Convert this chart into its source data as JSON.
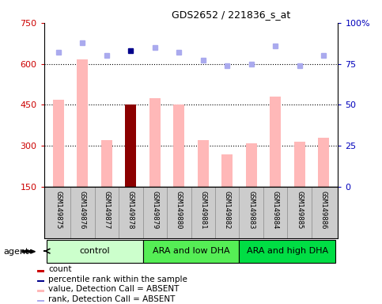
{
  "title": "GDS2652 / 221836_s_at",
  "samples": [
    "GSM149875",
    "GSM149876",
    "GSM149877",
    "GSM149878",
    "GSM149879",
    "GSM149880",
    "GSM149881",
    "GSM149882",
    "GSM149883",
    "GSM149884",
    "GSM149885",
    "GSM149886"
  ],
  "bar_values": [
    470,
    615,
    320,
    450,
    475,
    450,
    320,
    270,
    310,
    480,
    315,
    330
  ],
  "bar_colors": [
    "#ffb8b8",
    "#ffb8b8",
    "#ffb8b8",
    "#8b0000",
    "#ffb8b8",
    "#ffb8b8",
    "#ffb8b8",
    "#ffb8b8",
    "#ffb8b8",
    "#ffb8b8",
    "#ffb8b8",
    "#ffb8b8"
  ],
  "rank_values": [
    82,
    88,
    80,
    83,
    85,
    82,
    77,
    74,
    75,
    86,
    74,
    80
  ],
  "rank_colors": [
    "#aaaaee",
    "#aaaaee",
    "#aaaaee",
    "#00008b",
    "#aaaaee",
    "#aaaaee",
    "#aaaaee",
    "#aaaaee",
    "#aaaaee",
    "#aaaaee",
    "#aaaaee",
    "#aaaaee"
  ],
  "groups": [
    {
      "label": "control",
      "start": 0,
      "end": 3,
      "color": "#ccffcc"
    },
    {
      "label": "ARA and low DHA",
      "start": 4,
      "end": 7,
      "color": "#55ee55"
    },
    {
      "label": "ARA and high DHA",
      "start": 8,
      "end": 11,
      "color": "#00dd44"
    }
  ],
  "ylim_left": [
    150,
    750
  ],
  "ylim_right": [
    0,
    100
  ],
  "yticks_left": [
    150,
    300,
    450,
    600,
    750
  ],
  "yticks_right": [
    0,
    25,
    50,
    75,
    100
  ],
  "ylabel_left_color": "#cc0000",
  "ylabel_right_color": "#0000bb",
  "hlines": [
    300,
    450,
    600
  ],
  "legend_items": [
    {
      "label": "count",
      "color": "#cc0000"
    },
    {
      "label": "percentile rank within the sample",
      "color": "#00008b"
    },
    {
      "label": "value, Detection Call = ABSENT",
      "color": "#ffb8b8"
    },
    {
      "label": "rank, Detection Call = ABSENT",
      "color": "#aaaaee"
    }
  ],
  "bg_color": "#ffffff",
  "plot_bg": "#ffffff",
  "label_area_color": "#cccccc",
  "bar_width": 0.45
}
